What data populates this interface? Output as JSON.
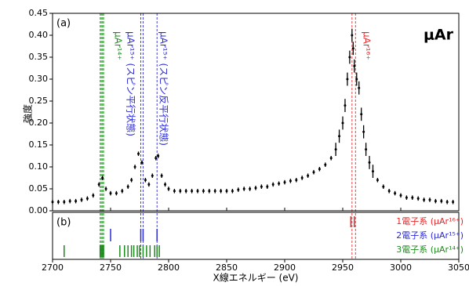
{
  "chart_data": {
    "type": "scatter",
    "panel_labels": [
      "(a)",
      "(b)"
    ],
    "badge": "μAr",
    "x_label": "X線エネルギー (eV)",
    "y_label": "強度",
    "xlim": [
      2700,
      3050
    ],
    "xticks": [
      2700,
      2750,
      2800,
      2850,
      2900,
      2950,
      3000,
      3050
    ],
    "ylim": [
      0,
      0.45
    ],
    "yticks": [
      {
        "value": 0,
        "label": "0.00"
      },
      {
        "value": 0.05,
        "label": "0.05"
      },
      {
        "value": 0.1,
        "label": "0.10"
      },
      {
        "value": 0.15,
        "label": "0.15"
      },
      {
        "value": 0.2,
        "label": "0.20"
      },
      {
        "value": 0.25,
        "label": "0.25"
      },
      {
        "value": 0.3,
        "label": "0.30"
      },
      {
        "value": 0.35,
        "label": "0.35"
      },
      {
        "value": 0.4,
        "label": "0.40"
      },
      {
        "value": 0.45,
        "label": "0.45"
      }
    ],
    "color": "#000000",
    "x": [
      2700,
      2705,
      2710,
      2715,
      2720,
      2725,
      2730,
      2735,
      2740,
      2743,
      2746,
      2750,
      2755,
      2760,
      2765,
      2768,
      2771,
      2774,
      2777,
      2780,
      2783,
      2786,
      2789,
      2791,
      2794,
      2797,
      2800,
      2805,
      2810,
      2815,
      2820,
      2825,
      2830,
      2835,
      2840,
      2845,
      2850,
      2855,
      2860,
      2865,
      2870,
      2875,
      2880,
      2885,
      2890,
      2895,
      2900,
      2905,
      2910,
      2915,
      2920,
      2925,
      2930,
      2935,
      2940,
      2944,
      2947,
      2950,
      2952,
      2954,
      2956,
      2958,
      2959,
      2960,
      2962,
      2964,
      2966,
      2968,
      2970,
      2973,
      2976,
      2980,
      2985,
      2990,
      2995,
      3000,
      3005,
      3010,
      3015,
      3020,
      3025,
      3030,
      3035,
      3040,
      3045
    ],
    "values": [
      0.02,
      0.02,
      0.02,
      0.022,
      0.022,
      0.025,
      0.028,
      0.035,
      0.06,
      0.075,
      0.05,
      0.04,
      0.04,
      0.045,
      0.055,
      0.07,
      0.1,
      0.13,
      0.11,
      0.07,
      0.06,
      0.08,
      0.12,
      0.125,
      0.08,
      0.06,
      0.05,
      0.045,
      0.045,
      0.045,
      0.045,
      0.045,
      0.045,
      0.045,
      0.045,
      0.045,
      0.045,
      0.045,
      0.048,
      0.05,
      0.05,
      0.052,
      0.055,
      0.055,
      0.06,
      0.062,
      0.065,
      0.068,
      0.07,
      0.075,
      0.08,
      0.088,
      0.095,
      0.105,
      0.12,
      0.14,
      0.17,
      0.2,
      0.24,
      0.3,
      0.35,
      0.4,
      0.37,
      0.33,
      0.3,
      0.28,
      0.22,
      0.18,
      0.14,
      0.11,
      0.09,
      0.07,
      0.055,
      0.045,
      0.04,
      0.035,
      0.03,
      0.03,
      0.028,
      0.025,
      0.025,
      0.022,
      0.022,
      0.02,
      0.02
    ],
    "errors": [
      0.005,
      0.005,
      0.005,
      0.005,
      0.005,
      0.005,
      0.005,
      0.005,
      0.005,
      0.005,
      0.005,
      0.005,
      0.005,
      0.005,
      0.005,
      0.005,
      0.005,
      0.005,
      0.005,
      0.005,
      0.005,
      0.005,
      0.005,
      0.005,
      0.005,
      0.005,
      0.005,
      0.005,
      0.005,
      0.005,
      0.005,
      0.005,
      0.005,
      0.005,
      0.005,
      0.005,
      0.005,
      0.005,
      0.005,
      0.005,
      0.005,
      0.005,
      0.005,
      0.005,
      0.005,
      0.005,
      0.005,
      0.005,
      0.005,
      0.005,
      0.005,
      0.005,
      0.005,
      0.005,
      0.005,
      0.015,
      0.015,
      0.015,
      0.015,
      0.015,
      0.015,
      0.015,
      0.015,
      0.015,
      0.015,
      0.015,
      0.015,
      0.015,
      0.015,
      0.015,
      0.015,
      0.005,
      0.005,
      0.005,
      0.005,
      0.005,
      0.005,
      0.005,
      0.005,
      0.005,
      0.005,
      0.005,
      0.005,
      0.005,
      0.005
    ],
    "transitions": [
      {
        "name": "1電子系 (μAr¹⁶⁺)",
        "color": "#e8282b",
        "x": [
          2957,
          2960
        ]
      },
      {
        "name": "2電子系 (μAr¹⁵⁺)",
        "color": "#2a2ad8",
        "x": [
          2750,
          2776,
          2778,
          2790
        ]
      },
      {
        "name": "3電子系 (μAr¹⁴⁺)",
        "color": "#1f8a1f",
        "x": [
          2710,
          2741,
          2742,
          2743,
          2744,
          2758,
          2762,
          2765,
          2768,
          2770,
          2773,
          2775,
          2778,
          2781,
          2784,
          2788,
          2790,
          2792
        ]
      }
    ],
    "reference_lines": [
      {
        "color": "#e8282b",
        "x": [
          2958,
          2961
        ]
      },
      {
        "color": "#2a2ad8",
        "x": [
          2776,
          2778,
          2790
        ]
      },
      {
        "color": "#5cb85c",
        "x": [
          2741,
          2742,
          2743,
          2744
        ]
      }
    ],
    "annotations": [
      {
        "text": "μAr¹⁴⁺",
        "color": "#1f8a1f"
      },
      {
        "text": "μAr¹⁵⁺ (スピン平行状態)",
        "color": "#2a2ad8"
      },
      {
        "text": "μAr¹⁵⁺ (スピン反平行状態)",
        "color": "#2a2ad8"
      },
      {
        "text": "μAr¹⁶⁺",
        "color": "#e8282b"
      }
    ]
  }
}
